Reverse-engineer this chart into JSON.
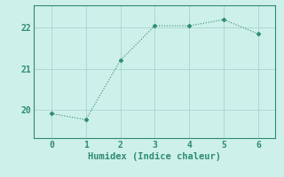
{
  "x": [
    0,
    1,
    2,
    3,
    4,
    5,
    6
  ],
  "y": [
    19.9,
    19.75,
    21.2,
    22.05,
    22.05,
    22.2,
    21.85
  ],
  "line_color": "#2e8b72",
  "marker": "D",
  "marker_size": 2.5,
  "bg_color": "#cef0ea",
  "grid_color": "#aad4ce",
  "axis_color": "#2e8b72",
  "xlabel": "Humidex (Indice chaleur)",
  "xlabel_fontsize": 7.5,
  "tick_fontsize": 7,
  "xlim": [
    -0.5,
    6.5
  ],
  "ylim": [
    19.3,
    22.55
  ],
  "yticks": [
    20,
    21,
    22
  ],
  "xticks": [
    0,
    1,
    2,
    3,
    4,
    5,
    6
  ]
}
